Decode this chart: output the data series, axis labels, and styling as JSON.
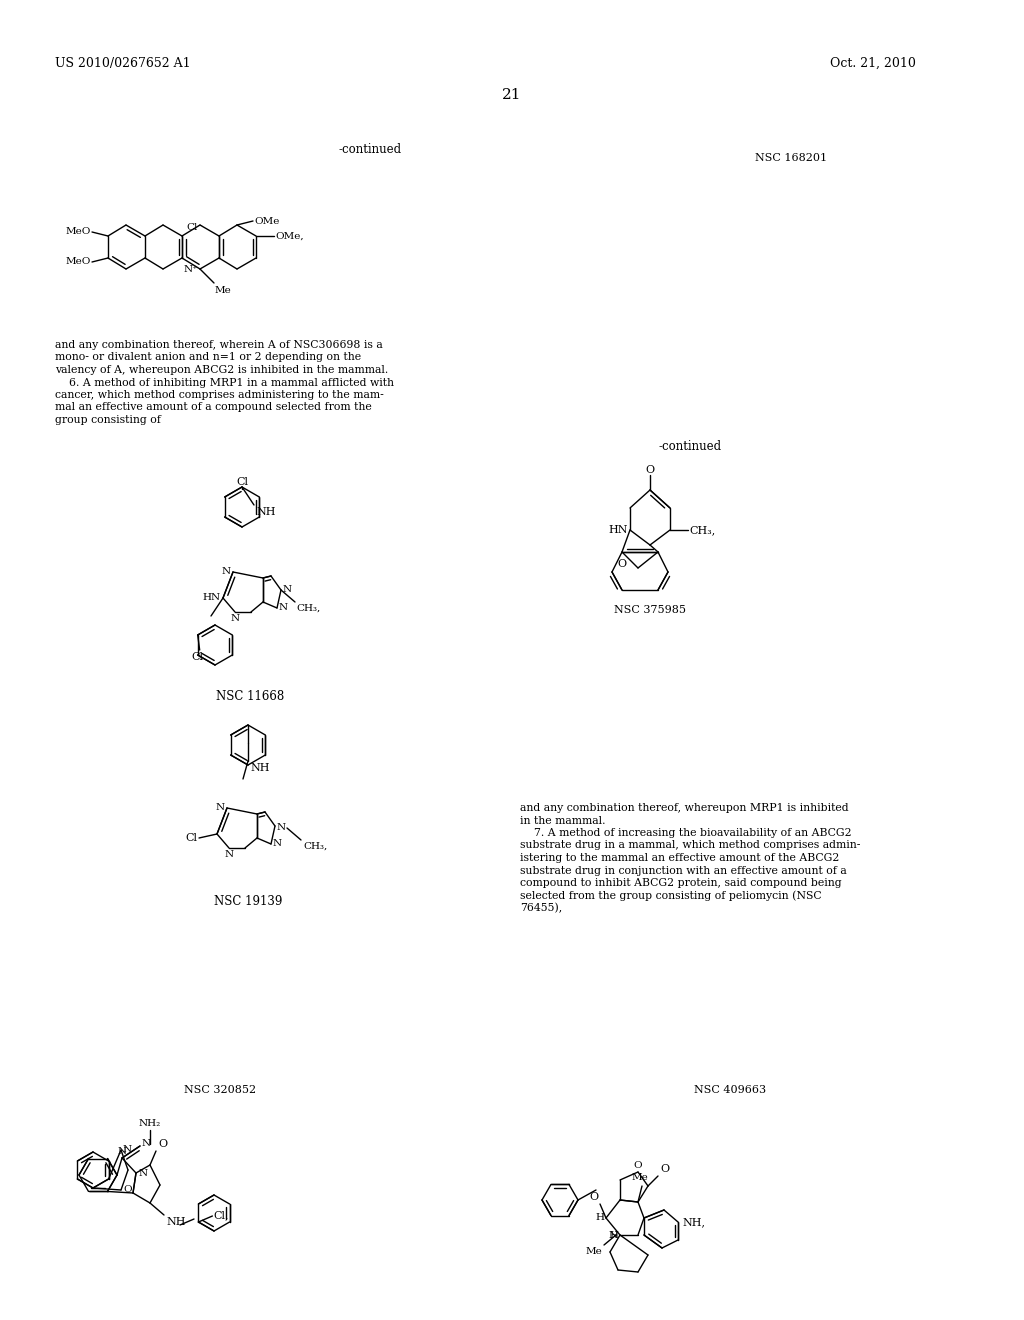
{
  "page_number": "21",
  "patent_number": "US 2010/0267652 A1",
  "patent_date": "Oct. 21, 2010",
  "background_color": "#ffffff",
  "continued_label": "-continued",
  "nsc_168201": "NSC 168201",
  "nsc_375985": "NSC 375985",
  "nsc_11668": "NSC 11668",
  "nsc_19139": "NSC 19139",
  "nsc_320852": "NSC 320852",
  "nsc_409663": "NSC 409663",
  "para1_lines": [
    "and any combination thereof, wherein A of NSC306698 is a",
    "mono- or divalent anion and n=1 or 2 depending on the",
    "valency of A, whereupon ABCG2 is inhibited in the mammal.",
    "    6. A method of inhibiting MRP1 in a mammal afflicted with",
    "cancer, which method comprises administering to the mam-",
    "mal an effective amount of a compound selected from the",
    "group consisting of"
  ],
  "para2_lines": [
    "and any combination thereof, whereupon MRP1 is inhibited",
    "in the mammal.",
    "    7. A method of increasing the bioavailability of an ABCG2",
    "substrate drug in a mammal, which method comprises admin-",
    "istering to the mammal an effective amount of the ABCG2",
    "substrate drug in conjunction with an effective amount of a",
    "compound to inhibit ABCG2 protein, said compound being",
    "selected from the group consisting of peliomycin (NSC",
    "76455),"
  ]
}
